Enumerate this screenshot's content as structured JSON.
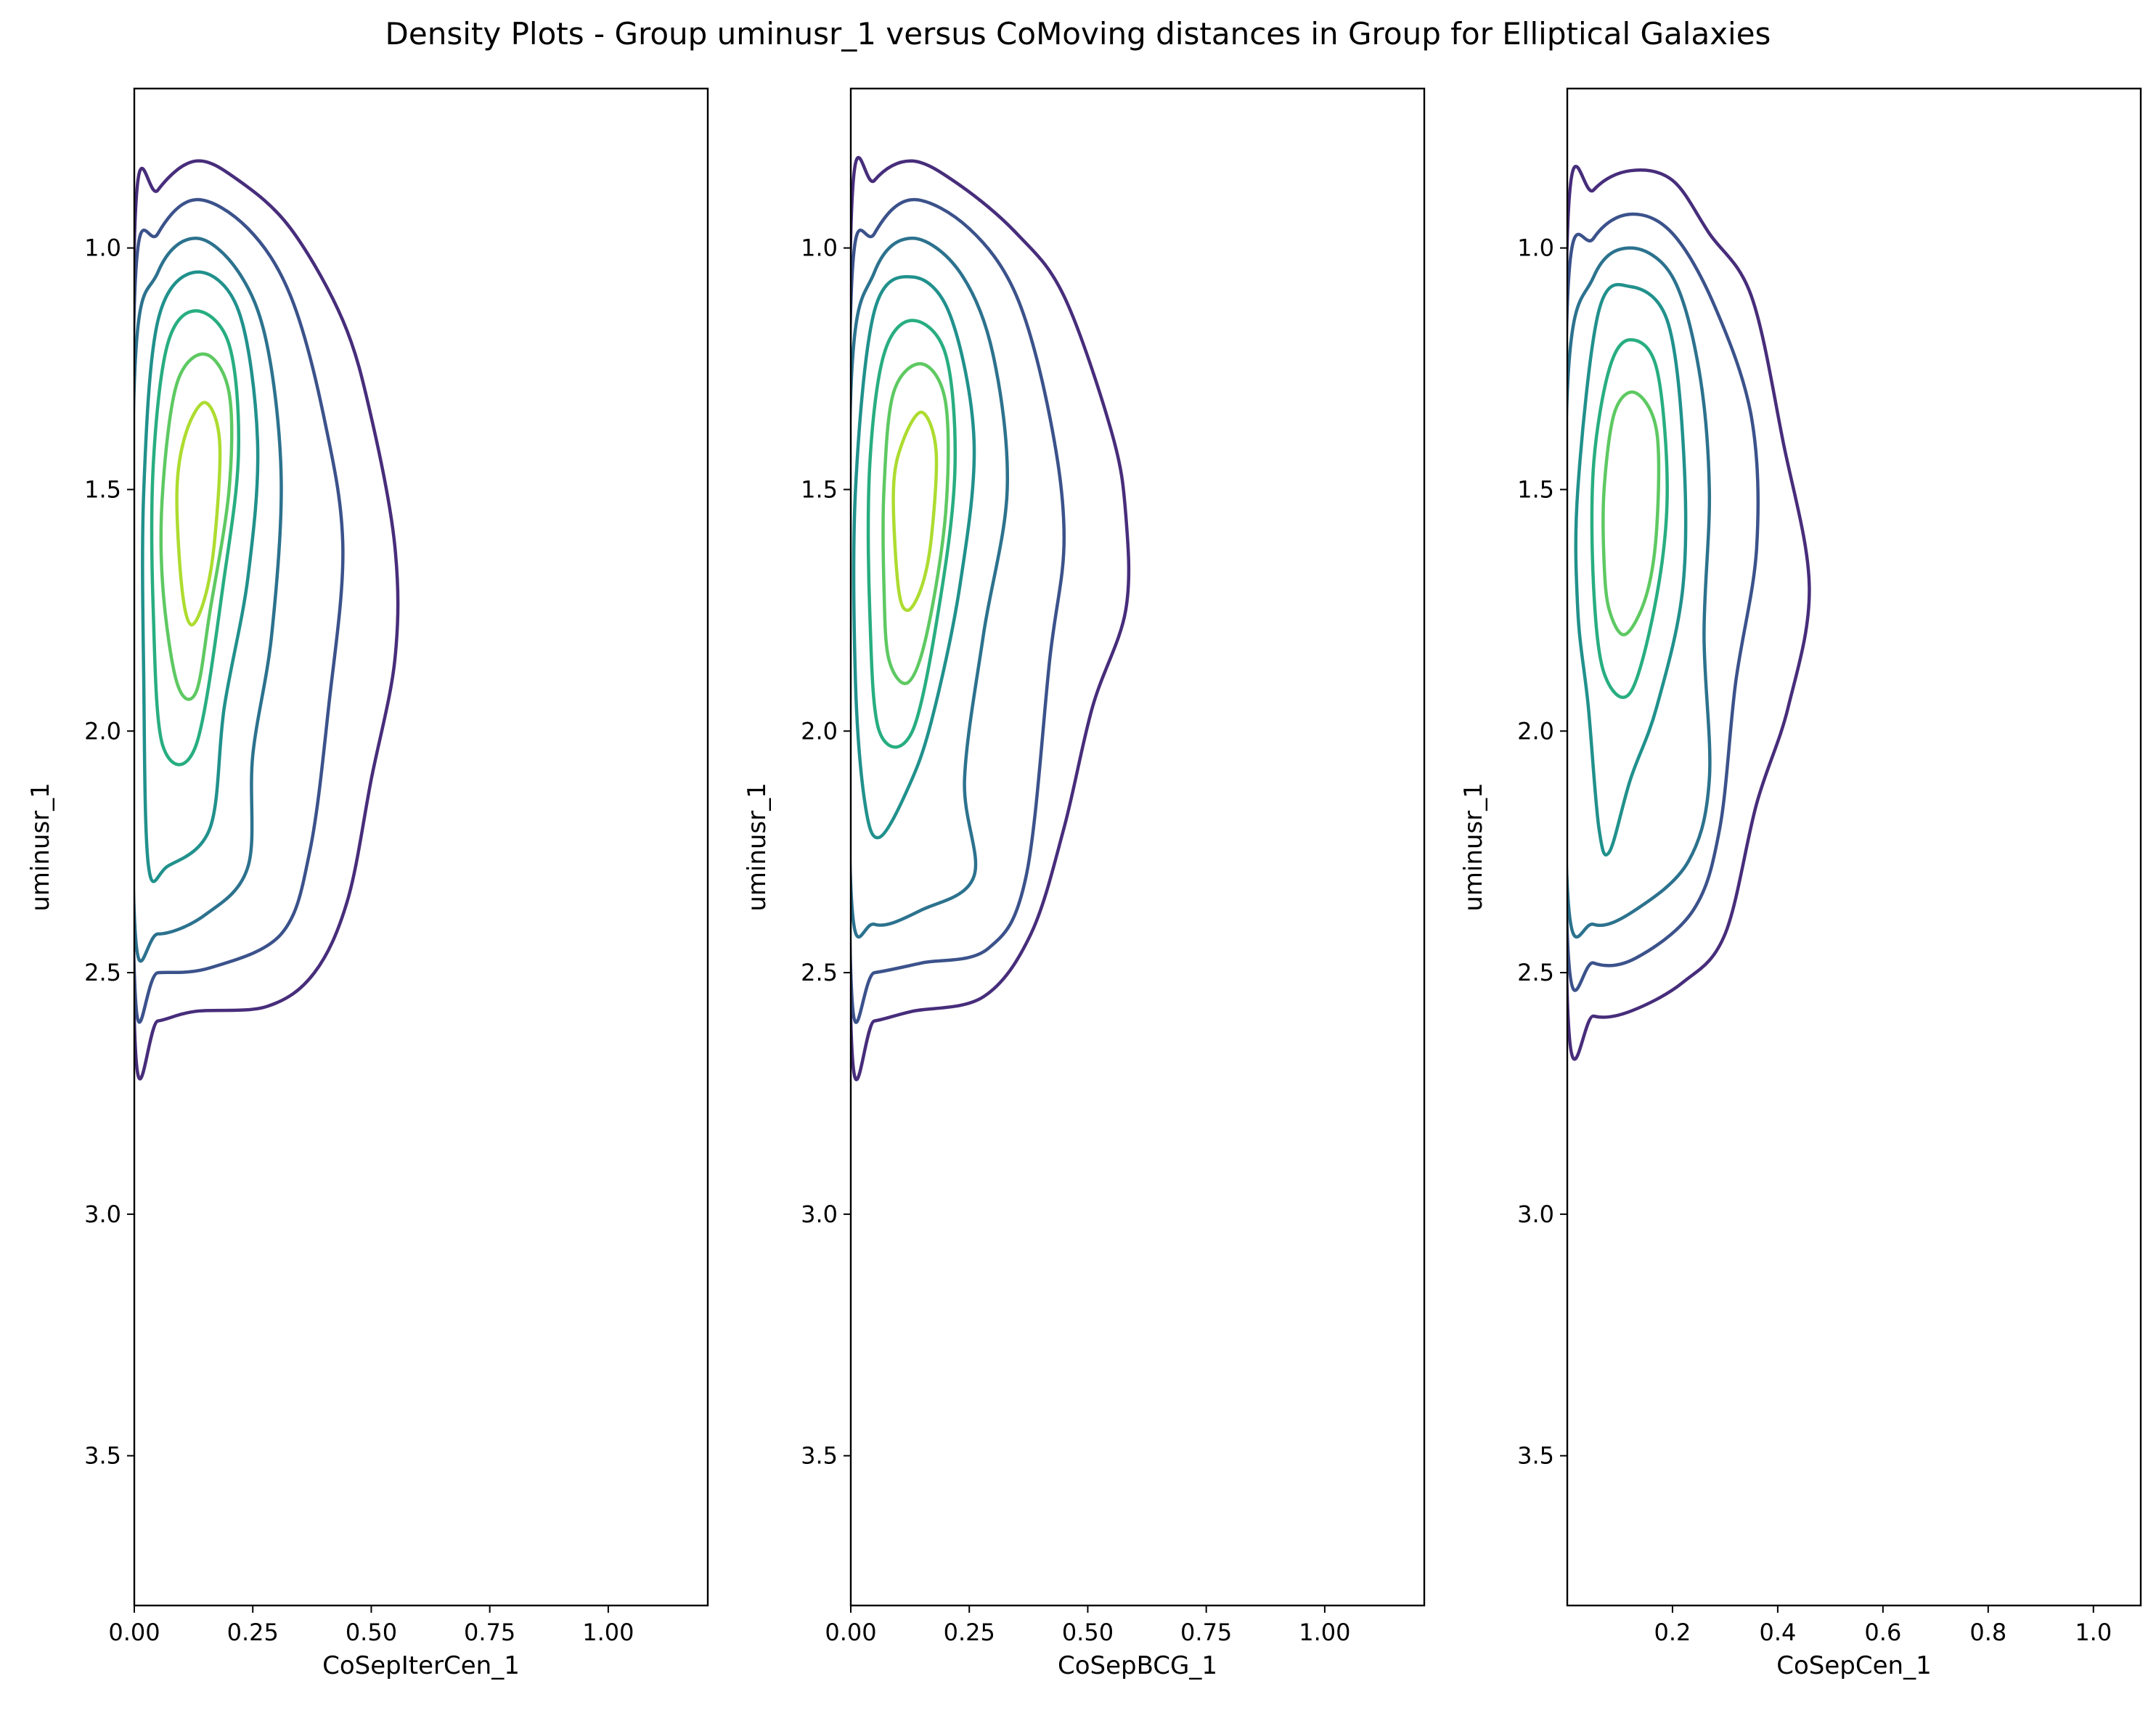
{
  "title": "Density Plots - Group uminusr_1 versus CoMoving distances in Group for Elliptical Galaxies",
  "colors": {
    "levels": [
      "#472d7b",
      "#3b528b",
      "#2c728e",
      "#21918c",
      "#28ae80",
      "#5ec962",
      "#addc30"
    ]
  },
  "chart_data": [
    {
      "type": "contour",
      "xlabel": "CoSepIterCen_1",
      "ylabel": "uminusr_1",
      "xlim": [
        0.0,
        1.21
      ],
      "ylim": [
        3.81,
        0.67
      ],
      "xticks": [
        0.0,
        0.25,
        0.5,
        0.75,
        1.0
      ],
      "xtick_labels": [
        "0.00",
        "0.25",
        "0.50",
        "0.75",
        "1.00"
      ],
      "yticks": [
        1.0,
        1.5,
        2.0,
        2.5,
        3.0,
        3.5
      ],
      "ytick_labels": [
        "1.0",
        "1.5",
        "2.0",
        "2.5",
        "3.0",
        "3.5"
      ],
      "contours": [
        {
          "level": 1,
          "points": [
            [
              0.0,
              0.99
            ],
            [
              0.05,
              0.88
            ],
            [
              0.13,
              0.82
            ],
            [
              0.22,
              0.86
            ],
            [
              0.33,
              0.96
            ],
            [
              0.44,
              1.15
            ],
            [
              0.5,
              1.35
            ],
            [
              0.55,
              1.62
            ],
            [
              0.55,
              1.85
            ],
            [
              0.5,
              2.1
            ],
            [
              0.45,
              2.35
            ],
            [
              0.38,
              2.5
            ],
            [
              0.28,
              2.57
            ],
            [
              0.13,
              2.58
            ],
            [
              0.05,
              2.6
            ],
            [
              0.0,
              2.6
            ]
          ]
        },
        {
          "level": 2,
          "points": [
            [
              0.0,
              1.12
            ],
            [
              0.05,
              0.97
            ],
            [
              0.13,
              0.9
            ],
            [
              0.24,
              0.96
            ],
            [
              0.33,
              1.1
            ],
            [
              0.4,
              1.35
            ],
            [
              0.44,
              1.62
            ],
            [
              0.41,
              1.95
            ],
            [
              0.37,
              2.25
            ],
            [
              0.31,
              2.42
            ],
            [
              0.16,
              2.49
            ],
            [
              0.05,
              2.5
            ],
            [
              0.0,
              2.5
            ]
          ]
        },
        {
          "level": 3,
          "points": [
            [
              0.0,
              1.28
            ],
            [
              0.05,
              1.05
            ],
            [
              0.13,
              0.98
            ],
            [
              0.22,
              1.05
            ],
            [
              0.28,
              1.2
            ],
            [
              0.31,
              1.48
            ],
            [
              0.29,
              1.8
            ],
            [
              0.25,
              2.05
            ],
            [
              0.24,
              2.28
            ],
            [
              0.15,
              2.38
            ],
            [
              0.05,
              2.42
            ],
            [
              0.0,
              2.38
            ]
          ]
        },
        {
          "level": 4,
          "points": [
            [
              0.02,
              1.5
            ],
            [
              0.05,
              1.15
            ],
            [
              0.13,
              1.05
            ],
            [
              0.22,
              1.13
            ],
            [
              0.26,
              1.4
            ],
            [
              0.24,
              1.68
            ],
            [
              0.19,
              1.95
            ],
            [
              0.16,
              2.2
            ],
            [
              0.07,
              2.28
            ],
            [
              0.03,
              2.28
            ],
            [
              0.02,
              1.9
            ]
          ]
        },
        {
          "level": 5,
          "points": [
            [
              0.04,
              1.45
            ],
            [
              0.07,
              1.2
            ],
            [
              0.13,
              1.13
            ],
            [
              0.2,
              1.2
            ],
            [
              0.22,
              1.42
            ],
            [
              0.19,
              1.68
            ],
            [
              0.13,
              2.03
            ],
            [
              0.06,
              2.03
            ],
            [
              0.04,
              1.75
            ]
          ]
        },
        {
          "level": 6,
          "points": [
            [
              0.06,
              1.5
            ],
            [
              0.09,
              1.28
            ],
            [
              0.15,
              1.22
            ],
            [
              0.2,
              1.3
            ],
            [
              0.2,
              1.5
            ],
            [
              0.16,
              1.75
            ],
            [
              0.13,
              1.92
            ],
            [
              0.09,
              1.9
            ],
            [
              0.06,
              1.7
            ]
          ]
        },
        {
          "level": 7,
          "points": [
            [
              0.09,
              1.5
            ],
            [
              0.11,
              1.38
            ],
            [
              0.15,
              1.32
            ],
            [
              0.18,
              1.4
            ],
            [
              0.17,
              1.6
            ],
            [
              0.15,
              1.72
            ],
            [
              0.12,
              1.78
            ],
            [
              0.1,
              1.7
            ]
          ]
        }
      ]
    },
    {
      "type": "contour",
      "xlabel": "CoSepBCG_1",
      "ylabel": "uminusr_1",
      "xlim": [
        0.0,
        1.21
      ],
      "ylim": [
        3.81,
        0.67
      ],
      "xticks": [
        0.0,
        0.25,
        0.5,
        0.75,
        1.0
      ],
      "xtick_labels": [
        "0.00",
        "0.25",
        "0.50",
        "0.75",
        "1.00"
      ],
      "yticks": [
        1.0,
        1.5,
        2.0,
        2.5,
        3.0,
        3.5
      ],
      "ytick_labels": [
        "1.0",
        "1.5",
        "2.0",
        "2.5",
        "3.0",
        "3.5"
      ],
      "contours": [
        {
          "level": 1,
          "points": [
            [
              0.0,
              0.97
            ],
            [
              0.05,
              0.86
            ],
            [
              0.13,
              0.82
            ],
            [
              0.23,
              0.87
            ],
            [
              0.35,
              0.97
            ],
            [
              0.45,
              1.1
            ],
            [
              0.55,
              1.38
            ],
            [
              0.58,
              1.55
            ],
            [
              0.58,
              1.75
            ],
            [
              0.51,
              1.95
            ],
            [
              0.45,
              2.2
            ],
            [
              0.38,
              2.42
            ],
            [
              0.28,
              2.55
            ],
            [
              0.13,
              2.58
            ],
            [
              0.05,
              2.6
            ],
            [
              0.0,
              2.6
            ]
          ]
        },
        {
          "level": 2,
          "points": [
            [
              0.0,
              1.12
            ],
            [
              0.05,
              0.97
            ],
            [
              0.13,
              0.9
            ],
            [
              0.25,
              0.96
            ],
            [
              0.35,
              1.1
            ],
            [
              0.42,
              1.35
            ],
            [
              0.45,
              1.6
            ],
            [
              0.42,
              1.85
            ],
            [
              0.37,
              2.3
            ],
            [
              0.29,
              2.45
            ],
            [
              0.15,
              2.48
            ],
            [
              0.05,
              2.5
            ],
            [
              0.0,
              2.5
            ]
          ]
        },
        {
          "level": 3,
          "points": [
            [
              0.0,
              1.3
            ],
            [
              0.05,
              1.05
            ],
            [
              0.13,
              0.98
            ],
            [
              0.23,
              1.05
            ],
            [
              0.3,
              1.22
            ],
            [
              0.33,
              1.5
            ],
            [
              0.28,
              1.8
            ],
            [
              0.24,
              2.1
            ],
            [
              0.26,
              2.3
            ],
            [
              0.15,
              2.37
            ],
            [
              0.05,
              2.4
            ],
            [
              0.0,
              2.32
            ]
          ]
        },
        {
          "level": 4,
          "points": [
            [
              0.01,
              1.5
            ],
            [
              0.05,
              1.13
            ],
            [
              0.13,
              1.06
            ],
            [
              0.21,
              1.14
            ],
            [
              0.26,
              1.4
            ],
            [
              0.23,
              1.7
            ],
            [
              0.17,
              1.98
            ],
            [
              0.12,
              2.12
            ],
            [
              0.06,
              2.22
            ],
            [
              0.03,
              2.15
            ],
            [
              0.01,
              1.9
            ]
          ]
        },
        {
          "level": 5,
          "points": [
            [
              0.04,
              1.45
            ],
            [
              0.07,
              1.22
            ],
            [
              0.13,
              1.15
            ],
            [
              0.2,
              1.22
            ],
            [
              0.22,
              1.45
            ],
            [
              0.19,
              1.72
            ],
            [
              0.13,
              2.0
            ],
            [
              0.06,
              2.0
            ],
            [
              0.04,
              1.75
            ]
          ]
        },
        {
          "level": 6,
          "points": [
            [
              0.07,
              1.5
            ],
            [
              0.09,
              1.3
            ],
            [
              0.15,
              1.24
            ],
            [
              0.2,
              1.32
            ],
            [
              0.2,
              1.55
            ],
            [
              0.16,
              1.8
            ],
            [
              0.12,
              1.9
            ],
            [
              0.08,
              1.85
            ],
            [
              0.07,
              1.7
            ]
          ]
        },
        {
          "level": 7,
          "points": [
            [
              0.09,
              1.5
            ],
            [
              0.11,
              1.4
            ],
            [
              0.15,
              1.34
            ],
            [
              0.18,
              1.42
            ],
            [
              0.17,
              1.6
            ],
            [
              0.15,
              1.7
            ],
            [
              0.12,
              1.75
            ],
            [
              0.1,
              1.7
            ]
          ]
        }
      ]
    },
    {
      "type": "contour",
      "xlabel": "CoSepCen_1",
      "ylabel": "uminusr_1",
      "xlim": [
        0.0,
        1.09
      ],
      "ylim": [
        3.81,
        0.67
      ],
      "xticks": [
        0.2,
        0.4,
        0.6,
        0.8,
        1.0
      ],
      "xtick_labels": [
        "0.2",
        "0.4",
        "0.6",
        "0.8",
        "1.0"
      ],
      "yticks": [
        1.0,
        1.5,
        2.0,
        2.5,
        3.0,
        3.5
      ],
      "ytick_labels": [
        "1.0",
        "1.5",
        "2.0",
        "2.5",
        "3.0",
        "3.5"
      ],
      "contours": [
        {
          "level": 1,
          "points": [
            [
              0.0,
              0.98
            ],
            [
              0.05,
              0.88
            ],
            [
              0.12,
              0.84
            ],
            [
              0.2,
              0.86
            ],
            [
              0.27,
              0.97
            ],
            [
              0.35,
              1.1
            ],
            [
              0.41,
              1.4
            ],
            [
              0.46,
              1.7
            ],
            [
              0.42,
              1.95
            ],
            [
              0.36,
              2.15
            ],
            [
              0.3,
              2.42
            ],
            [
              0.22,
              2.52
            ],
            [
              0.12,
              2.58
            ],
            [
              0.05,
              2.59
            ],
            [
              0.0,
              2.55
            ]
          ]
        },
        {
          "level": 2,
          "points": [
            [
              0.0,
              1.12
            ],
            [
              0.05,
              0.98
            ],
            [
              0.12,
              0.93
            ],
            [
              0.2,
              0.97
            ],
            [
              0.28,
              1.12
            ],
            [
              0.35,
              1.35
            ],
            [
              0.36,
              1.62
            ],
            [
              0.32,
              1.9
            ],
            [
              0.29,
              2.2
            ],
            [
              0.24,
              2.37
            ],
            [
              0.13,
              2.47
            ],
            [
              0.05,
              2.48
            ],
            [
              0.0,
              2.42
            ]
          ]
        },
        {
          "level": 3,
          "points": [
            [
              0.0,
              1.3
            ],
            [
              0.05,
              1.06
            ],
            [
              0.12,
              1.0
            ],
            [
              0.2,
              1.06
            ],
            [
              0.25,
              1.25
            ],
            [
              0.27,
              1.5
            ],
            [
              0.26,
              1.8
            ],
            [
              0.27,
              2.1
            ],
            [
              0.23,
              2.27
            ],
            [
              0.13,
              2.37
            ],
            [
              0.05,
              2.4
            ],
            [
              0.0,
              2.32
            ]
          ]
        },
        {
          "level": 4,
          "points": [
            [
              0.02,
              1.5
            ],
            [
              0.06,
              1.13
            ],
            [
              0.12,
              1.08
            ],
            [
              0.19,
              1.15
            ],
            [
              0.22,
              1.4
            ],
            [
              0.22,
              1.7
            ],
            [
              0.17,
              1.95
            ],
            [
              0.12,
              2.1
            ],
            [
              0.08,
              2.25
            ],
            [
              0.06,
              2.2
            ],
            [
              0.04,
              1.95
            ],
            [
              0.02,
              1.75
            ]
          ]
        },
        {
          "level": 5,
          "points": [
            [
              0.05,
              1.45
            ],
            [
              0.08,
              1.25
            ],
            [
              0.12,
              1.19
            ],
            [
              0.17,
              1.25
            ],
            [
              0.19,
              1.5
            ],
            [
              0.17,
              1.72
            ],
            [
              0.12,
              1.92
            ],
            [
              0.07,
              1.88
            ],
            [
              0.05,
              1.7
            ]
          ]
        },
        {
          "level": 6,
          "points": [
            [
              0.07,
              1.5
            ],
            [
              0.09,
              1.34
            ],
            [
              0.13,
              1.3
            ],
            [
              0.17,
              1.38
            ],
            [
              0.17,
              1.58
            ],
            [
              0.15,
              1.72
            ],
            [
              0.11,
              1.8
            ],
            [
              0.08,
              1.75
            ],
            [
              0.07,
              1.65
            ]
          ]
        }
      ]
    }
  ]
}
